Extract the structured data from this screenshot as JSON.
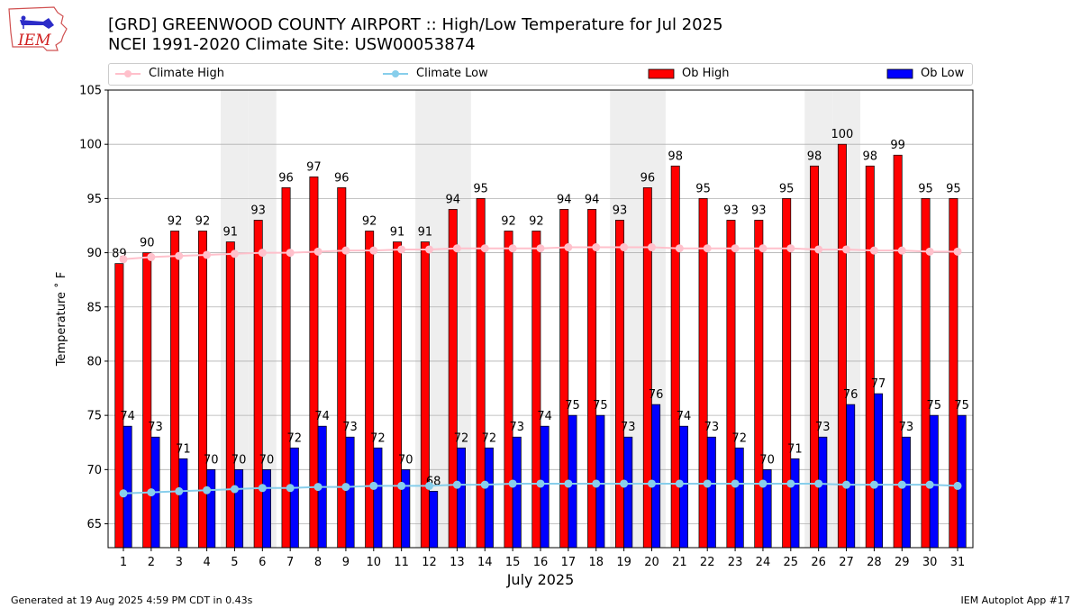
{
  "header": {
    "title_line1": "[GRD] GREENWOOD COUNTY AIRPORT :: High/Low Temperature for Jul 2025",
    "title_line2": "NCEI 1991-2020 Climate Site: USW00053874",
    "logo_text": "IEM"
  },
  "legend": {
    "climate_high": "Climate High",
    "climate_low": "Climate Low",
    "ob_high": "Ob High",
    "ob_low": "Ob Low"
  },
  "footer": {
    "generated": "Generated at 19 Aug 2025 4:59 PM CDT in 0.43s",
    "app": "IEM Autoplot App #17"
  },
  "colors": {
    "ob_high": "#ff0000",
    "ob_low": "#0000ff",
    "climate_high": "#ffc0cb",
    "climate_low": "#87ceeb",
    "weekend_band": "#eeeeee",
    "grid": "#b0b0b0"
  },
  "chart_data": {
    "type": "bar",
    "xlabel": "July 2025",
    "ylabel": "Temperature ˚ F",
    "ylim": [
      62.8,
      105
    ],
    "yticks": [
      65,
      70,
      75,
      80,
      85,
      90,
      95,
      100,
      105
    ],
    "grid": true,
    "legend_position": "top",
    "categories": [
      "1",
      "2",
      "3",
      "4",
      "5",
      "6",
      "7",
      "8",
      "9",
      "10",
      "11",
      "12",
      "13",
      "14",
      "15",
      "16",
      "17",
      "18",
      "19",
      "20",
      "21",
      "22",
      "23",
      "24",
      "25",
      "26",
      "27",
      "28",
      "29",
      "30",
      "31"
    ],
    "weekend_days": [
      5,
      6,
      12,
      13,
      19,
      20,
      26,
      27
    ],
    "series": [
      {
        "name": "Ob High",
        "type": "bar",
        "values": [
          89,
          90,
          92,
          92,
          91,
          93,
          96,
          97,
          96,
          92,
          91,
          91,
          94,
          95,
          92,
          92,
          94,
          94,
          93,
          96,
          98,
          95,
          93,
          93,
          95,
          98,
          100,
          98,
          99,
          95,
          95
        ]
      },
      {
        "name": "Ob Low",
        "type": "bar",
        "values": [
          74,
          73,
          71,
          70,
          70,
          70,
          72,
          74,
          73,
          72,
          70,
          68,
          72,
          72,
          73,
          74,
          75,
          75,
          73,
          76,
          74,
          73,
          72,
          70,
          71,
          73,
          76,
          77,
          73,
          75,
          75
        ]
      },
      {
        "name": "Climate High",
        "type": "line",
        "values": [
          89.4,
          89.6,
          89.7,
          89.8,
          89.9,
          90.0,
          90.0,
          90.1,
          90.2,
          90.2,
          90.3,
          90.3,
          90.4,
          90.4,
          90.4,
          90.4,
          90.5,
          90.5,
          90.5,
          90.5,
          90.4,
          90.4,
          90.4,
          90.4,
          90.4,
          90.3,
          90.3,
          90.2,
          90.2,
          90.1,
          90.1
        ]
      },
      {
        "name": "Climate Low",
        "type": "line",
        "values": [
          67.8,
          67.9,
          68.0,
          68.1,
          68.2,
          68.3,
          68.3,
          68.4,
          68.4,
          68.5,
          68.5,
          68.5,
          68.6,
          68.6,
          68.7,
          68.7,
          68.7,
          68.7,
          68.7,
          68.7,
          68.7,
          68.7,
          68.7,
          68.7,
          68.7,
          68.7,
          68.6,
          68.6,
          68.6,
          68.6,
          68.5
        ]
      }
    ]
  }
}
